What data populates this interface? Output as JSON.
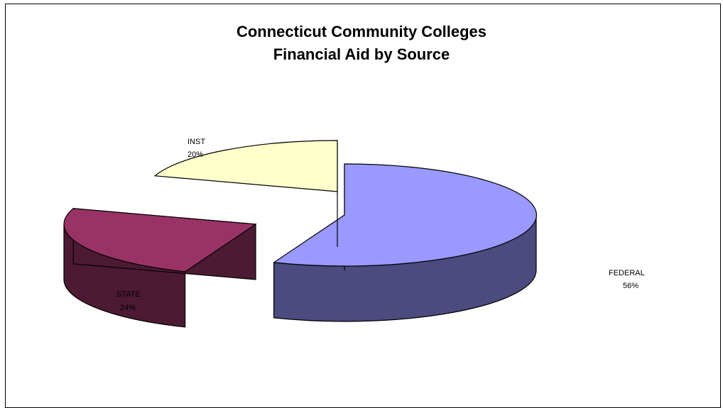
{
  "chart_data": {
    "type": "pie",
    "title": [
      "Connecticut Community Colleges",
      "Financial Aid by Source"
    ],
    "slices": [
      {
        "category": "FEDERAL",
        "percent_label": "56%",
        "value": 56,
        "color": "#9999ff",
        "side_color": "#4b4b7f"
      },
      {
        "category": "STATE",
        "percent_label": "24%",
        "value": 24,
        "color": "#993366",
        "side_color": "#4c1a33"
      },
      {
        "category": "INST",
        "percent_label": "20%",
        "value": 20,
        "color": "#ffffcc",
        "side_color": "#7f7f66"
      }
    ]
  }
}
